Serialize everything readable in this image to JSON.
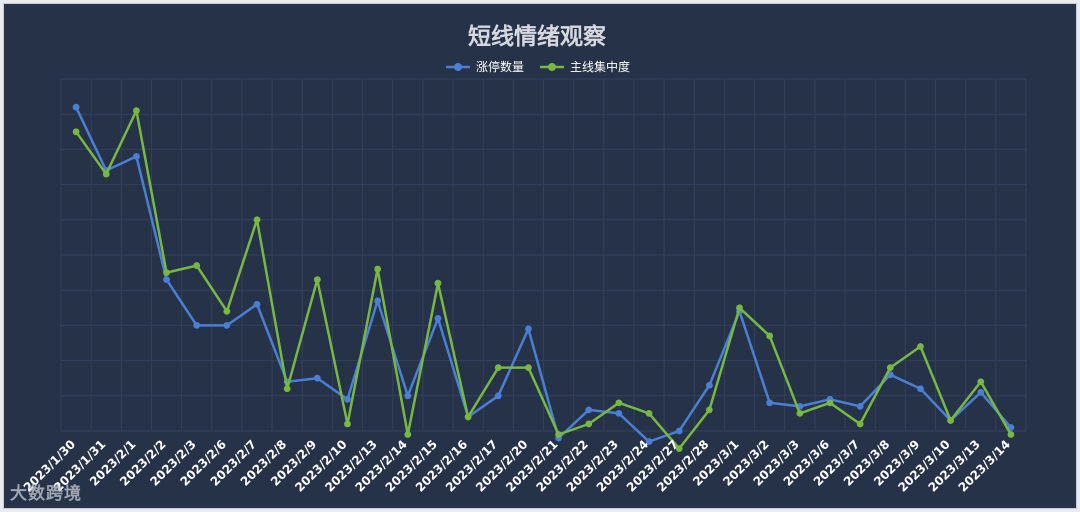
{
  "watermark": "大数跨境",
  "chart_data": {
    "type": "line",
    "title": "短线情绪观察",
    "xlabel": "",
    "ylabel": "",
    "grid": true,
    "legend": "top-center",
    "colors": {
      "background": "#263248",
      "grid": "#33425c",
      "text": "#ffffff",
      "title": "#d6d9df"
    },
    "categories": [
      "2023/1/30",
      "2023/1/31",
      "2023/2/1",
      "2023/2/2",
      "2023/2/3",
      "2023/2/6",
      "2023/2/7",
      "2023/2/8",
      "2023/2/9",
      "2023/2/10",
      "2023/2/13",
      "2023/2/14",
      "2023/2/15",
      "2023/2/16",
      "2023/2/17",
      "2023/2/20",
      "2023/2/21",
      "2023/2/22",
      "2023/2/23",
      "2023/2/24",
      "2023/2/27",
      "2023/2/28",
      "2023/3/1",
      "2023/3/2",
      "2023/3/3",
      "2023/3/6",
      "2023/3/7",
      "2023/3/8",
      "2023/3/9",
      "2023/3/10",
      "2023/3/13",
      "2023/3/14"
    ],
    "ylim": [
      0,
      10
    ],
    "series": [
      {
        "name": "涨停数量",
        "color": "#4a7fd4",
        "values": [
          9.2,
          7.4,
          7.8,
          4.3,
          3.0,
          3.0,
          3.6,
          1.4,
          1.5,
          0.9,
          3.7,
          1.0,
          3.2,
          0.4,
          1.0,
          2.9,
          -0.2,
          0.6,
          0.5,
          -0.3,
          0.0,
          1.3,
          3.4,
          0.8,
          0.7,
          0.9,
          0.7,
          1.6,
          1.2,
          0.3,
          1.1,
          0.1
        ]
      },
      {
        "name": "主线集中度",
        "color": "#77b843",
        "values": [
          8.5,
          7.3,
          9.1,
          4.5,
          4.7,
          3.4,
          6.0,
          1.2,
          4.3,
          0.2,
          4.6,
          -0.1,
          4.2,
          0.4,
          1.8,
          1.8,
          -0.1,
          0.2,
          0.8,
          0.5,
          -0.5,
          0.6,
          3.5,
          2.7,
          0.5,
          0.8,
          0.2,
          1.8,
          2.4,
          0.3,
          1.4,
          -0.1
        ]
      }
    ]
  }
}
